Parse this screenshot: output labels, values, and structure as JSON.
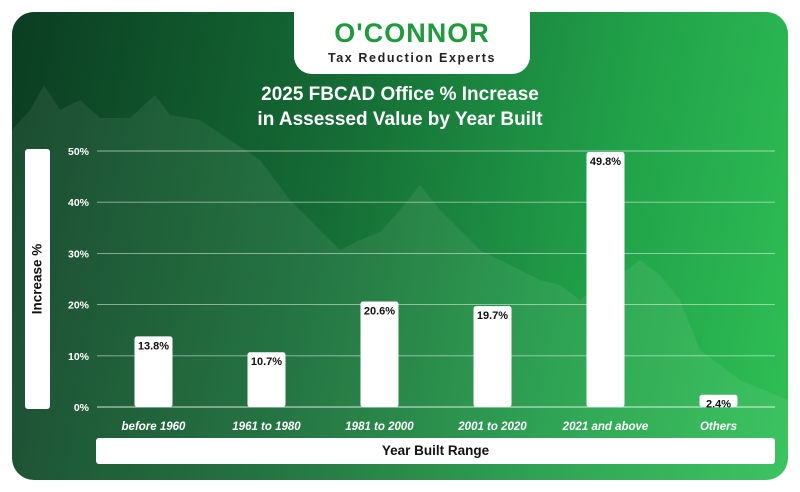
{
  "logo": {
    "main": "O'CONNOR",
    "sub": "Tax Reduction Experts"
  },
  "colors": {
    "bar": "#ffffff",
    "brand_green": "#1f9a3d"
  },
  "chart_data": {
    "type": "bar",
    "title": "2025 FBCAD Office % Increase in Assessed Value by Year Built",
    "title_lines": [
      "2025 FBCAD Office % Increase",
      "in Assessed Value by Year Built"
    ],
    "xlabel": "Year Built Range",
    "ylabel": "Increase %",
    "categories": [
      "before 1960",
      "1961 to 1980",
      "1981 to 2000",
      "2001 to 2020",
      "2021 and above",
      "Others"
    ],
    "values": [
      13.8,
      10.7,
      20.6,
      19.7,
      49.8,
      2.4
    ],
    "data_labels": [
      "13.8%",
      "10.7%",
      "20.6%",
      "19.7%",
      "49.8%",
      "2.4%"
    ],
    "ylim": [
      0,
      50
    ],
    "yticks": [
      0,
      10,
      20,
      30,
      40,
      50
    ],
    "ytick_labels": [
      "0%",
      "10%",
      "20%",
      "30%",
      "40%",
      "50%"
    ],
    "grid": true,
    "legend": "none"
  }
}
